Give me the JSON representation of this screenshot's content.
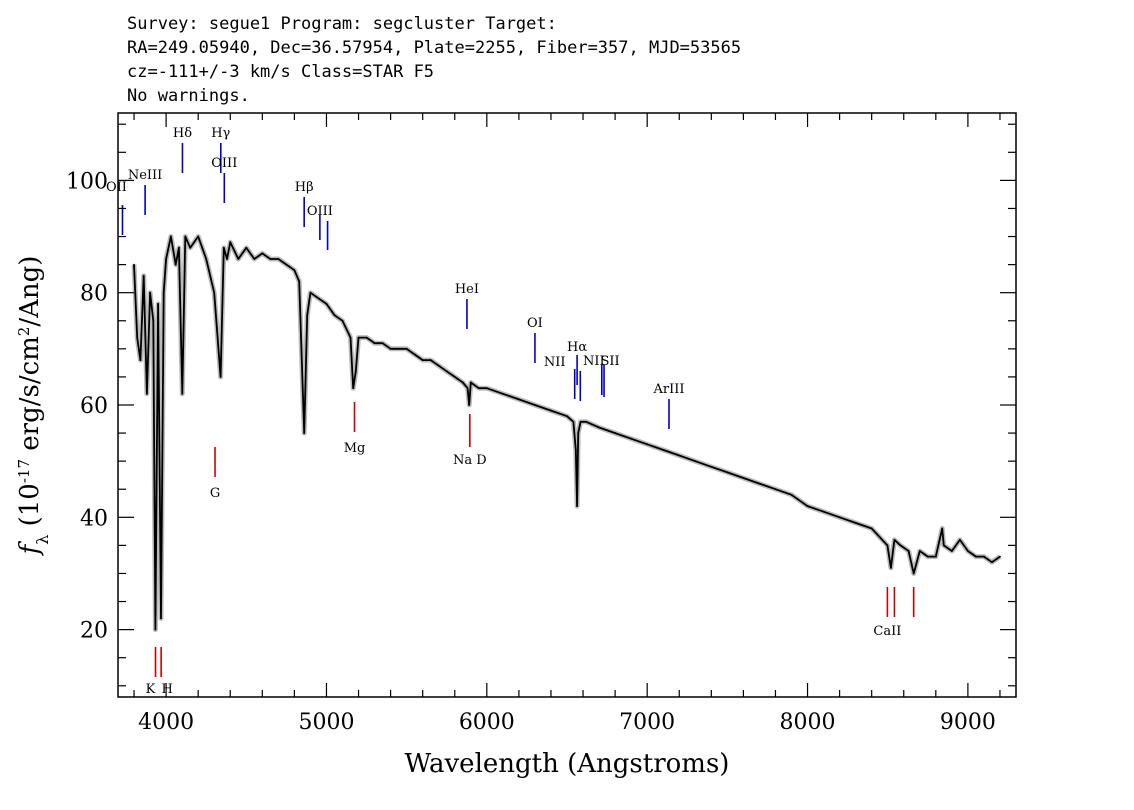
{
  "header": {
    "line1": "Survey: segue1 Program: segcluster Target:",
    "line2": "RA=249.05940, Dec=36.57954, Plate=2255, Fiber=357, MJD=53565",
    "line3": "cz=-111+/-3 km/s Class=STAR F5",
    "line4": "No warnings."
  },
  "chart_data": {
    "type": "line",
    "title": "",
    "xlabel": "Wavelength (Angstroms)",
    "ylabel": "f_λ (10^-17 erg/s/cm^2/Ang)",
    "xlim": [
      3700,
      9300
    ],
    "ylim": [
      8,
      112
    ],
    "x_ticks": [
      4000,
      5000,
      6000,
      7000,
      8000,
      9000
    ],
    "y_ticks": [
      20,
      40,
      60,
      80,
      100
    ],
    "grid": false,
    "colors": {
      "flux": "#000000",
      "error_band": "#bbbbbb",
      "emission": "#0000cc",
      "absorption": "#cc0000"
    },
    "series": [
      {
        "x": [
          3800,
          3820,
          3840,
          3860,
          3880,
          3900,
          3920,
          3933,
          3950,
          3968,
          3985,
          4000,
          4030,
          4060,
          4080,
          4101,
          4120,
          4150,
          4200,
          4250,
          4300,
          4340,
          4360,
          4380,
          4400,
          4450,
          4500,
          4550,
          4600,
          4650,
          4700,
          4750,
          4800,
          4830,
          4861,
          4880,
          4900,
          4950,
          5000,
          5050,
          5100,
          5150,
          5167,
          5183,
          5200,
          5250,
          5300,
          5350,
          5400,
          5450,
          5500,
          5550,
          5600,
          5650,
          5700,
          5750,
          5800,
          5850,
          5880,
          5890,
          5900,
          5950,
          6000,
          6100,
          6200,
          6300,
          6400,
          6500,
          6540,
          6555,
          6563,
          6570,
          6585,
          6620,
          6700,
          6800,
          6900,
          7000,
          7100,
          7200,
          7300,
          7400,
          7500,
          7600,
          7700,
          7800,
          7900,
          8000,
          8100,
          8200,
          8300,
          8400,
          8498,
          8520,
          8542,
          8580,
          8630,
          8662,
          8700,
          8750,
          8800,
          8840,
          8850,
          8900,
          8950,
          9000,
          9050,
          9100,
          9150,
          9200
        ],
        "y": [
          85,
          72,
          68,
          83,
          62,
          80,
          75,
          20,
          78,
          22,
          80,
          86,
          90,
          85,
          88,
          62,
          90,
          88,
          90,
          86,
          80,
          65,
          88,
          86,
          89,
          86,
          88,
          86,
          87,
          86,
          86,
          85,
          84,
          82,
          55,
          76,
          80,
          79,
          78,
          76,
          75,
          72,
          63,
          66,
          72,
          72,
          71,
          71,
          70,
          70,
          70,
          69,
          68,
          68,
          67,
          66,
          65,
          64,
          63,
          60,
          64,
          63,
          63,
          62,
          61,
          60,
          59,
          58,
          57,
          52,
          42,
          55,
          57,
          57,
          56,
          55,
          54,
          53,
          52,
          51,
          50,
          49,
          48,
          47,
          46,
          45,
          44,
          42,
          41,
          40,
          39,
          38,
          35,
          31,
          36,
          35,
          34,
          30,
          34,
          33,
          33,
          38,
          35,
          34,
          36,
          34,
          33,
          33,
          32,
          33
        ]
      }
    ],
    "line_markers": [
      {
        "label": "OII",
        "x": 3728,
        "kind": "emission"
      },
      {
        "label": "NeIII",
        "x": 3869,
        "kind": "emission"
      },
      {
        "label": "Hδ",
        "x": 4102,
        "kind": "emission"
      },
      {
        "label": "Hγ",
        "x": 4341,
        "kind": "emission"
      },
      {
        "label": "OIII",
        "x": 4363,
        "kind": "emission"
      },
      {
        "label": "Hβ",
        "x": 4861,
        "kind": "emission"
      },
      {
        "label": "OIII",
        "x": 4959,
        "kind": "emission"
      },
      {
        "label": "",
        "x": 5007,
        "kind": "emission"
      },
      {
        "label": "HeI",
        "x": 5876,
        "kind": "emission"
      },
      {
        "label": "OI",
        "x": 6300,
        "kind": "emission"
      },
      {
        "label": "NII",
        "x": 6548,
        "kind": "emission"
      },
      {
        "label": "Hα",
        "x": 6563,
        "kind": "emission"
      },
      {
        "label": "",
        "x": 6583,
        "kind": "emission"
      },
      {
        "label": "NII",
        "x": 6717,
        "kind": "emission"
      },
      {
        "label": "SII",
        "x": 6731,
        "kind": "emission"
      },
      {
        "label": "ArIII",
        "x": 7136,
        "kind": "emission"
      },
      {
        "label": "K",
        "x": 3934,
        "kind": "absorption"
      },
      {
        "label": "H",
        "x": 3969,
        "kind": "absorption"
      },
      {
        "label": "G",
        "x": 4305,
        "kind": "absorption"
      },
      {
        "label": "Mg",
        "x": 5175,
        "kind": "absorption"
      },
      {
        "label": "Na D",
        "x": 5894,
        "kind": "absorption"
      },
      {
        "label": "CaII",
        "x": 8498,
        "kind": "absorption"
      },
      {
        "label": "",
        "x": 8542,
        "kind": "absorption"
      },
      {
        "label": "",
        "x": 8662,
        "kind": "absorption"
      }
    ]
  }
}
